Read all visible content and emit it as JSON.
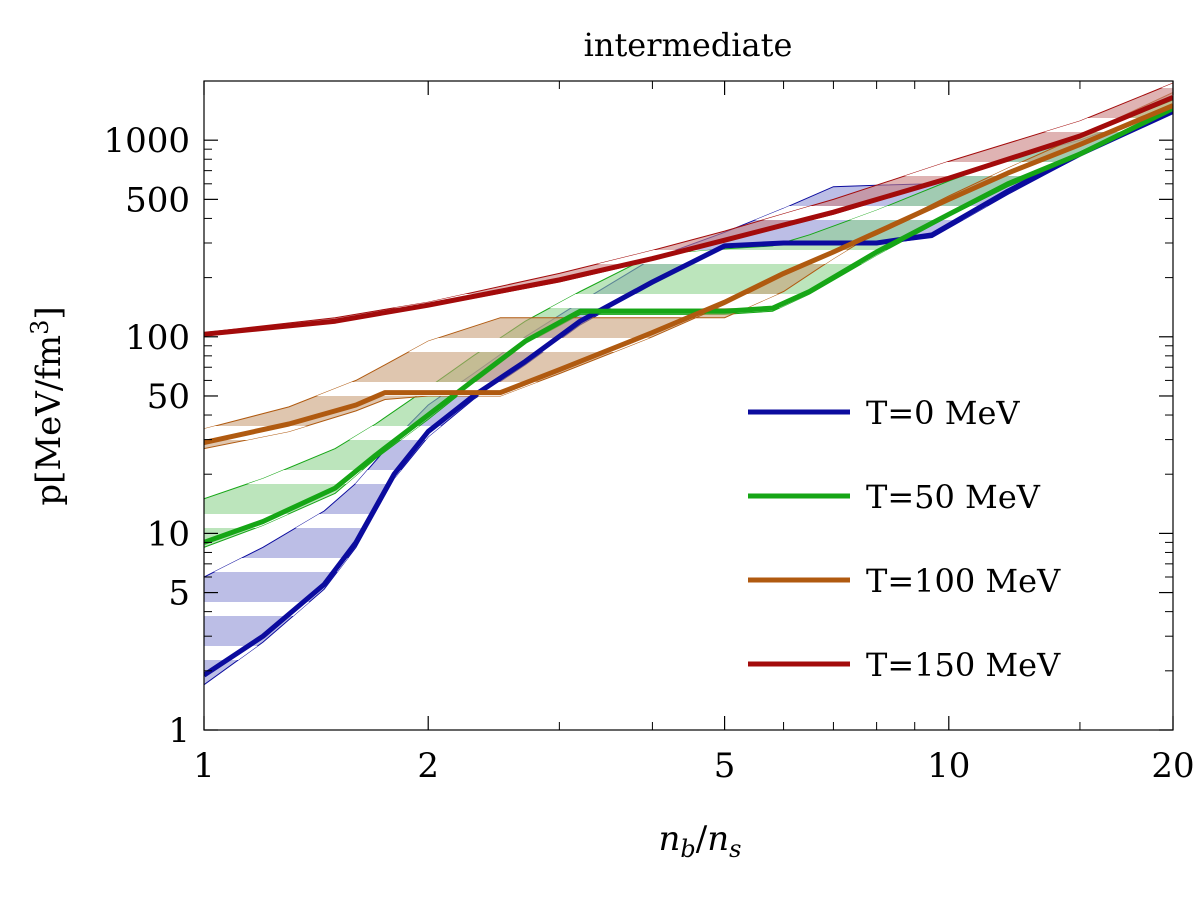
{
  "chart_data": {
    "type": "line",
    "title": "intermediate",
    "xlabel": "n_b/n_s",
    "ylabel": "p[MeV/fm^3]",
    "xscale": "log",
    "yscale": "log",
    "xlim": [
      1,
      20
    ],
    "ylim": [
      1,
      2000
    ],
    "x_ticks": [
      1,
      2,
      5,
      10,
      20
    ],
    "x_tick_labels": [
      "1",
      "2",
      "5",
      "10",
      "20"
    ],
    "y_ticks": [
      1,
      5,
      10,
      50,
      100,
      500,
      1000
    ],
    "y_tick_labels": [
      "1",
      "5",
      "10",
      "50",
      "100",
      "500",
      "1000"
    ],
    "legend_position": "right",
    "series": [
      {
        "name": "T=0 MeV",
        "color": "#0b0b9e",
        "band_color": "#8f93d6",
        "x": [
          1,
          1.2,
          1.45,
          1.6,
          1.8,
          2.0,
          2.3,
          2.7,
          3.2,
          4.0,
          5.0,
          6.0,
          7.0,
          8.0,
          9.5,
          12,
          15,
          20
        ],
        "y": [
          1.9,
          3.0,
          5.5,
          9.0,
          20,
          33,
          50,
          75,
          120,
          190,
          290,
          300,
          300,
          300,
          330,
          550,
          850,
          1400
        ],
        "band_upper": [
          6.0,
          8.5,
          13,
          18,
          30,
          45,
          65,
          100,
          150,
          250,
          340,
          450,
          580,
          590,
          600,
          800,
          1000,
          1500
        ],
        "band_lower": [
          1.7,
          2.8,
          5.2,
          8.5,
          19,
          31,
          48,
          72,
          115,
          185,
          285,
          295,
          295,
          295,
          320,
          530,
          830,
          1380
        ]
      },
      {
        "name": "T=50 MeV",
        "color": "#16a616",
        "band_color": "#8fd48f",
        "x": [
          1,
          1.2,
          1.5,
          1.7,
          2.0,
          2.3,
          2.7,
          3.2,
          4.0,
          5.0,
          5.8,
          6.5,
          8.0,
          10,
          12,
          15,
          20
        ],
        "y": [
          9.0,
          11.5,
          17,
          25,
          40,
          60,
          95,
          135,
          135,
          135,
          140,
          170,
          270,
          420,
          600,
          850,
          1450
        ],
        "band_upper": [
          15,
          19,
          27,
          36,
          55,
          80,
          120,
          170,
          260,
          280,
          290,
          330,
          440,
          620,
          800,
          1050,
          1600
        ],
        "band_lower": [
          8.5,
          11,
          16,
          24,
          38,
          58,
          92,
          130,
          130,
          130,
          135,
          165,
          260,
          410,
          580,
          830,
          1420
        ]
      },
      {
        "name": "T=100 MeV",
        "color": "#b05a10",
        "band_color": "#c9a07a",
        "x": [
          1,
          1.3,
          1.6,
          1.75,
          2.0,
          2.5,
          3.0,
          4.0,
          5.0,
          6.0,
          7.0,
          8.0,
          10,
          12,
          15,
          20
        ],
        "y": [
          29,
          36,
          45,
          52,
          52,
          52,
          68,
          105,
          150,
          210,
          270,
          340,
          500,
          680,
          950,
          1500
        ],
        "band_upper": [
          34,
          44,
          60,
          72,
          95,
          125,
          125,
          125,
          125,
          170,
          250,
          340,
          520,
          720,
          1050,
          1750
        ],
        "band_lower": [
          27,
          33,
          42,
          48,
          50,
          50,
          65,
          100,
          145,
          205,
          265,
          330,
          490,
          670,
          940,
          1480
        ]
      },
      {
        "name": "T=150 MeV",
        "color": "#a30b0b",
        "band_color": "#c98080",
        "x": [
          1,
          1.5,
          2.0,
          3.0,
          4.0,
          5.0,
          7.0,
          10,
          15,
          20
        ],
        "y": [
          103,
          120,
          145,
          195,
          250,
          310,
          430,
          640,
          1050,
          1650
        ],
        "band_upper": [
          105,
          125,
          150,
          210,
          275,
          345,
          500,
          780,
          1250,
          1950
        ],
        "band_lower": [
          102,
          118,
          142,
          190,
          245,
          305,
          420,
          630,
          1030,
          1620
        ]
      }
    ]
  }
}
